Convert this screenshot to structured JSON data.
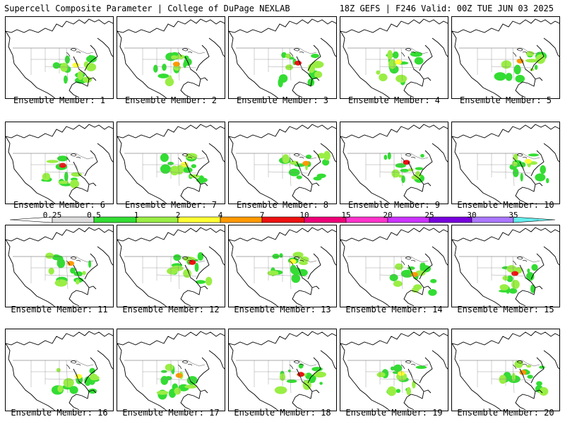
{
  "header": {
    "left": "Supercell Composite Parameter | College of DuPage NEXLAB",
    "right": "18Z GEFS | F246 Valid: 00Z TUE JUN 03 2025"
  },
  "legend": {
    "labels": [
      "0.25",
      "0.5",
      "1",
      "2",
      "4",
      "7",
      "10",
      "15",
      "20",
      "25",
      "30",
      "35"
    ],
    "colors": [
      "#ffffff",
      "#dddddd",
      "#33dd33",
      "#99ee44",
      "#ffff33",
      "#ff9900",
      "#ee1111",
      "#ee0077",
      "#ff33cc",
      "#cc33ff",
      "#7700dd",
      "#aa77ff",
      "#66eeee"
    ]
  },
  "members": [
    {
      "label": "Ensemble Member: 1"
    },
    {
      "label": "Ensemble Member: 2"
    },
    {
      "label": "Ensemble Member: 3"
    },
    {
      "label": "Ensemble Member: 4"
    },
    {
      "label": "Ensemble Member: 5"
    },
    {
      "label": "Ensemble Member: 6"
    },
    {
      "label": "Ensemble Member: 7"
    },
    {
      "label": "Ensemble Member: 8"
    },
    {
      "label": "Ensemble Member: 9"
    },
    {
      "label": "Ensemble Member: 10"
    },
    {
      "label": "Ensemble Member: 11"
    },
    {
      "label": "Ensemble Member: 12"
    },
    {
      "label": "Ensemble Member: 13"
    },
    {
      "label": "Ensemble Member: 14"
    },
    {
      "label": "Ensemble Member: 15"
    },
    {
      "label": "Ensemble Member: 16"
    },
    {
      "label": "Ensemble Member: 17"
    },
    {
      "label": "Ensemble Member: 18"
    },
    {
      "label": "Ensemble Member: 19"
    },
    {
      "label": "Ensemble Member: 20"
    }
  ]
}
